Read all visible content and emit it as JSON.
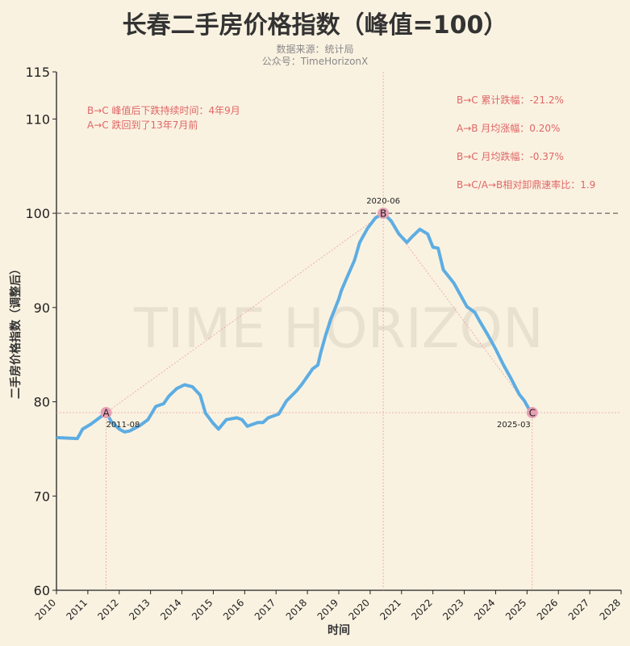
{
  "title": "长春二手房价格指数（峰值=100）",
  "subtitle_source": "数据来源：统计局",
  "subtitle_account": "公众号：TimeHorizonX",
  "watermark": "TIME HORIZON",
  "colors": {
    "line": "#5dade2",
    "annotation": "#e06666",
    "marker": "#e8a0b4",
    "background": "#faf2e1"
  },
  "chart_data": {
    "type": "line",
    "title": "长春二手房价格指数（峰值=100）",
    "xlabel": "时间",
    "ylabel": "二手房价格指数（调整后）",
    "xlim": [
      2010,
      2028
    ],
    "ylim": [
      60,
      115
    ],
    "xticks": [
      "2010",
      "2011",
      "2012",
      "2013",
      "2014",
      "2015",
      "2016",
      "2017",
      "2018",
      "2019",
      "2020",
      "2021",
      "2022",
      "2023",
      "2024",
      "2025",
      "2026",
      "2027",
      "2028"
    ],
    "yticks": [
      60,
      70,
      80,
      90,
      100,
      110,
      115
    ],
    "grid": false,
    "reference_line": 100,
    "series": [
      {
        "x": [
          "2010-01",
          "2010-09",
          "2010-11",
          "2011-02",
          "2011-04",
          "2011-08",
          "2011-10",
          "2012-01",
          "2012-03",
          "2012-05",
          "2012-09",
          "2012-12",
          "2013-03",
          "2013-06",
          "2013-08",
          "2013-11",
          "2014-02",
          "2014-05",
          "2014-08",
          "2014-10",
          "2015-01",
          "2015-03",
          "2015-06",
          "2015-10",
          "2015-12",
          "2016-02",
          "2016-06",
          "2016-08",
          "2016-10",
          "2017-02",
          "2017-05",
          "2017-09",
          "2017-11",
          "2018-03",
          "2018-05",
          "2018-06",
          "2018-08",
          "2018-10",
          "2019-01",
          "2019-02",
          "2019-04",
          "2019-07",
          "2019-09",
          "2019-12",
          "2020-03",
          "2020-06",
          "2020-09",
          "2020-12",
          "2021-03",
          "2021-05",
          "2021-08",
          "2021-11",
          "2022-01",
          "2022-03",
          "2022-05",
          "2022-09",
          "2022-12",
          "2023-02",
          "2023-05",
          "2023-07",
          "2023-10",
          "2024-01",
          "2024-04",
          "2024-07",
          "2024-10",
          "2024-12",
          "2025-02",
          "2025-03"
        ],
        "y": [
          76.2,
          76.1,
          77.1,
          77.6,
          78.0,
          78.85,
          77.9,
          77.1,
          76.8,
          76.9,
          77.5,
          78.1,
          79.5,
          79.8,
          80.6,
          81.4,
          81.8,
          81.6,
          80.7,
          78.8,
          77.7,
          77.1,
          78.1,
          78.3,
          78.1,
          77.4,
          77.8,
          77.8,
          78.3,
          78.7,
          80.1,
          81.2,
          81.9,
          83.5,
          83.9,
          85.1,
          87.1,
          88.8,
          90.9,
          91.8,
          93.1,
          95.0,
          96.9,
          98.4,
          99.5,
          100.0,
          99.2,
          97.8,
          96.9,
          97.5,
          98.3,
          97.8,
          96.4,
          96.3,
          94.0,
          92.6,
          91.1,
          90.1,
          89.5,
          88.5,
          87.1,
          85.6,
          83.9,
          82.4,
          80.8,
          80.1,
          79.1,
          78.85
        ]
      }
    ],
    "points": [
      {
        "label": "A",
        "date": "2011-08",
        "value": 78.85
      },
      {
        "label": "B",
        "date": "2020-06",
        "value": 100.0
      },
      {
        "label": "C",
        "date": "2025-03",
        "value": 78.85
      }
    ],
    "annotations_left": [
      "B→C 峰值后下跌持续时间：4年9月",
      "A→C 跌回到了13年7月前"
    ],
    "annotations_right": [
      "B→C 累计跌幅：-21.2%",
      "A→B 月均涨幅：0.20%",
      "B→C 月均跌幅：-0.37%",
      "B→C/A→B相对卸鼎速率比：1.9"
    ]
  }
}
